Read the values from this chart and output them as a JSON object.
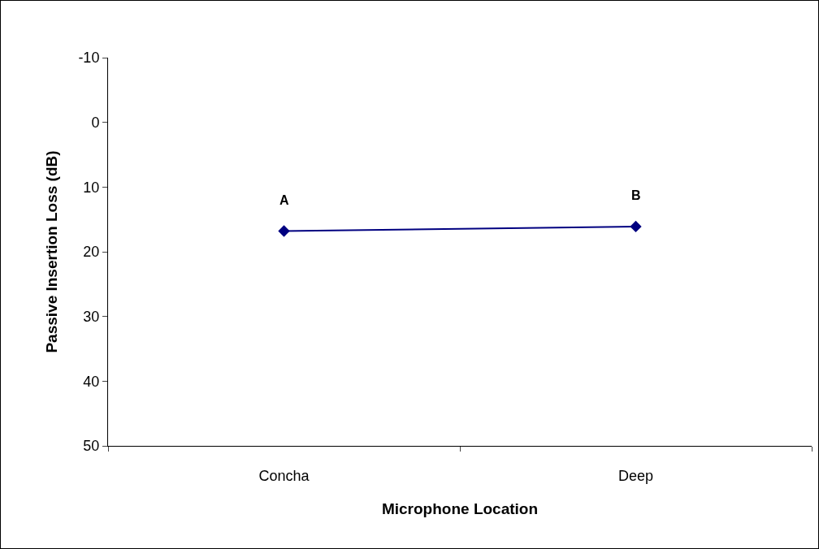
{
  "chart_data": {
    "type": "line",
    "xlabel": "Microphone Location",
    "ylabel": "Passive Insertion Loss (dB)",
    "categories": [
      "Concha",
      "Deep"
    ],
    "series": [
      {
        "color": "#000080",
        "values": [
          16.8,
          16.1
        ]
      }
    ],
    "ylim": [
      50,
      -10
    ],
    "yticks": [
      -10,
      0,
      10,
      20,
      30,
      40,
      50
    ],
    "annotations": [
      {
        "text": "A",
        "x": "Concha",
        "y": 16.8
      },
      {
        "text": "B",
        "x": "Deep",
        "y": 16.1
      }
    ],
    "grid": false,
    "marker": "diamond",
    "line_style": "solid"
  }
}
